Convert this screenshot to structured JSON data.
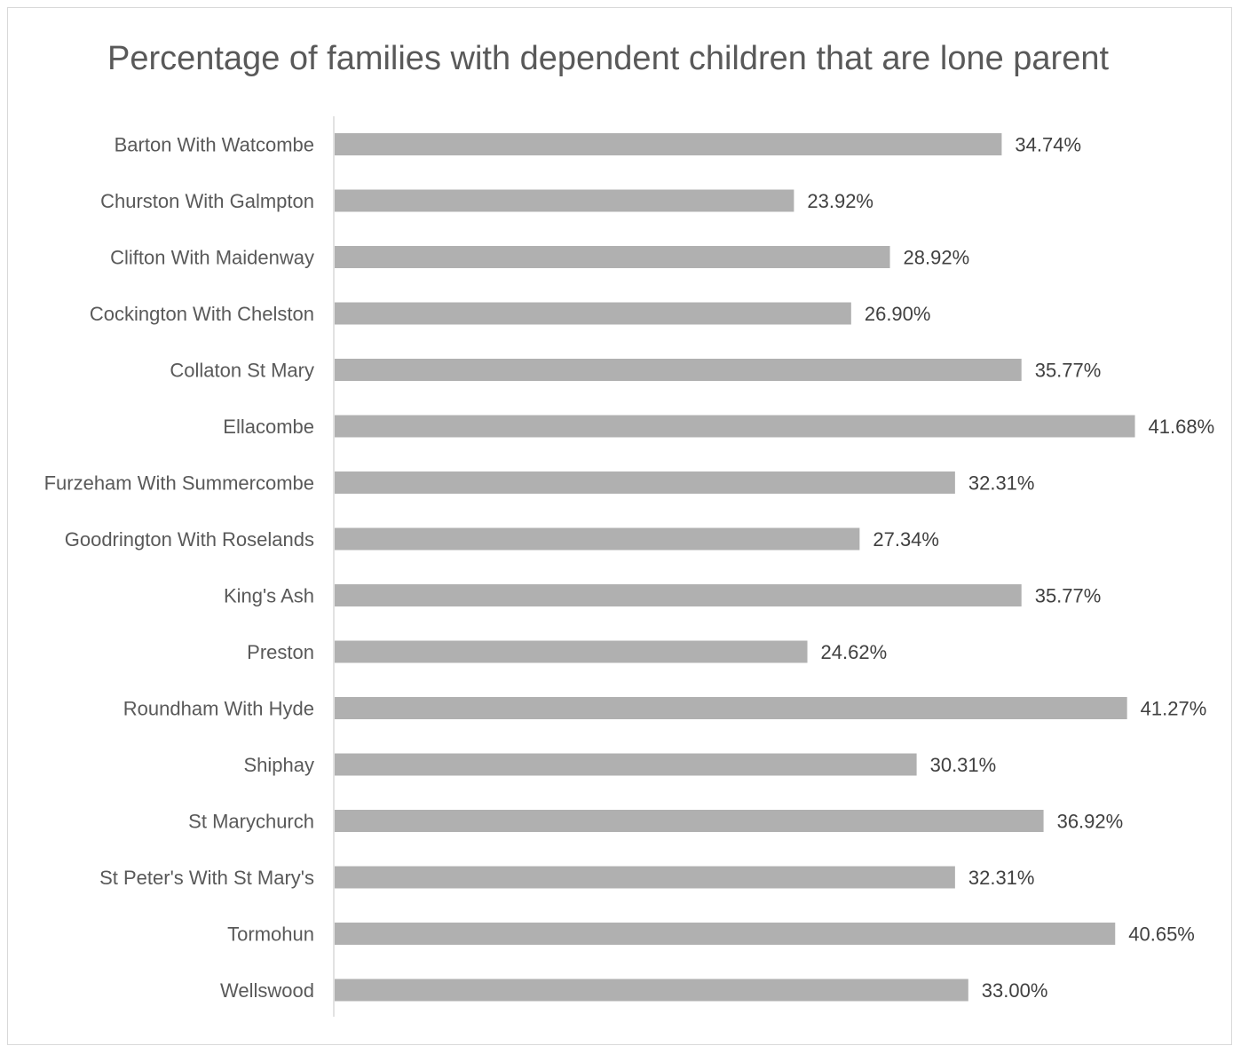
{
  "chart_data": {
    "type": "bar",
    "orientation": "horizontal",
    "title": "Percentage of families with dependent children that are lone parent",
    "categories": [
      "Barton With Watcombe",
      "Churston With Galmpton",
      "Clifton With Maidenway",
      "Cockington With Chelston",
      "Collaton St Mary",
      "Ellacombe",
      "Furzeham With Summercombe",
      "Goodrington With Roselands",
      "King's Ash",
      "Preston",
      "Roundham With Hyde",
      "Shiphay",
      "St Marychurch",
      "St Peter's With St Mary's",
      "Tormohun",
      "Wellswood"
    ],
    "values": [
      34.74,
      23.92,
      28.92,
      26.9,
      35.77,
      41.68,
      32.31,
      27.34,
      35.77,
      24.62,
      41.27,
      30.31,
      36.92,
      32.31,
      40.65,
      33.0
    ],
    "data_labels": [
      "34.74%",
      "23.92%",
      "28.92%",
      "26.90%",
      "35.77%",
      "41.68%",
      "32.31%",
      "27.34%",
      "35.77%",
      "24.62%",
      "41.27%",
      "30.31%",
      "36.92%",
      "32.31%",
      "40.65%",
      "33.00%"
    ],
    "xlim": [
      0,
      45
    ],
    "grid": false,
    "legend": "none",
    "bar_color": "#b0b0b0",
    "axis_color": "#d9d9d9"
  }
}
